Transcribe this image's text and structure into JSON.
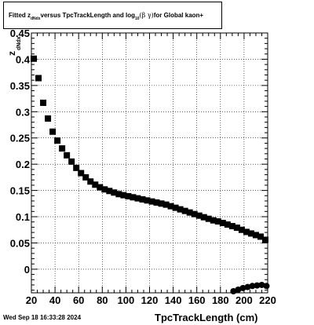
{
  "title": {
    "prefix": "Fitted  z",
    "z_subscript": "dNdx",
    "middle": "  versus TpcTrackLength and log",
    "log_subscript": "10",
    "sym_open": "(β  γ)",
    "suffix": " for Global kaon+"
  },
  "timestamp": "Wed Sep 18 16:33:28 2024",
  "xlabel": "TpcTrackLength (cm)",
  "ylabel": {
    "main": "z",
    "sub": "dNdx"
  },
  "chart_data": {
    "type": "scatter",
    "title": "Fitted z_dNdx versus TpcTrackLength and log10(β γ) for Global kaon+",
    "xlabel": "TpcTrackLength (cm)",
    "ylabel": "z_dNdx",
    "xlim": [
      20,
      220
    ],
    "ylim": [
      -0.045,
      0.45
    ],
    "x_ticks": [
      20,
      40,
      60,
      80,
      100,
      120,
      140,
      160,
      180,
      200,
      220
    ],
    "x_tick_labels": [
      "20",
      "40",
      "60",
      "80",
      "100",
      "120",
      "140",
      "160",
      "180",
      "200",
      "220"
    ],
    "y_ticks": [
      0,
      0.05,
      0.1,
      0.15,
      0.2,
      0.25,
      0.3,
      0.35,
      0.4,
      0.45
    ],
    "y_tick_labels": [
      "0",
      "0.05",
      "0.1",
      "0.15",
      "0.2",
      "0.25",
      "0.3",
      "0.35",
      "0.4",
      "0.45"
    ],
    "grid": true,
    "series": [
      {
        "marker": "square",
        "color": "#000000",
        "x": [
          22,
          26,
          30,
          34,
          38,
          42,
          46,
          50,
          54,
          58,
          62,
          66,
          70,
          74,
          78,
          82,
          86,
          90,
          94,
          98,
          102,
          106,
          110,
          114,
          118,
          122,
          126,
          130,
          134,
          138,
          142,
          146,
          150,
          154,
          158,
          162,
          166,
          170,
          174,
          178,
          182,
          186,
          190,
          194,
          198,
          202,
          206,
          210,
          214,
          218
        ],
        "y": [
          0.401,
          0.364,
          0.317,
          0.287,
          0.262,
          0.245,
          0.23,
          0.217,
          0.205,
          0.193,
          0.183,
          0.175,
          0.167,
          0.161,
          0.156,
          0.152,
          0.149,
          0.146,
          0.143,
          0.141,
          0.139,
          0.137,
          0.135,
          0.133,
          0.131,
          0.129,
          0.127,
          0.125,
          0.123,
          0.12,
          0.117,
          0.114,
          0.111,
          0.108,
          0.105,
          0.102,
          0.099,
          0.096,
          0.093,
          0.091,
          0.088,
          0.085,
          0.082,
          0.079,
          0.075,
          0.071,
          0.068,
          0.065,
          0.062,
          0.056
        ]
      },
      {
        "marker": "circle",
        "color": "#000000",
        "x": [
          191,
          195,
          199,
          203,
          207,
          211,
          215,
          219
        ],
        "y": [
          -0.042,
          -0.039,
          -0.036,
          -0.034,
          -0.032,
          -0.031,
          -0.03,
          -0.032
        ]
      }
    ]
  }
}
